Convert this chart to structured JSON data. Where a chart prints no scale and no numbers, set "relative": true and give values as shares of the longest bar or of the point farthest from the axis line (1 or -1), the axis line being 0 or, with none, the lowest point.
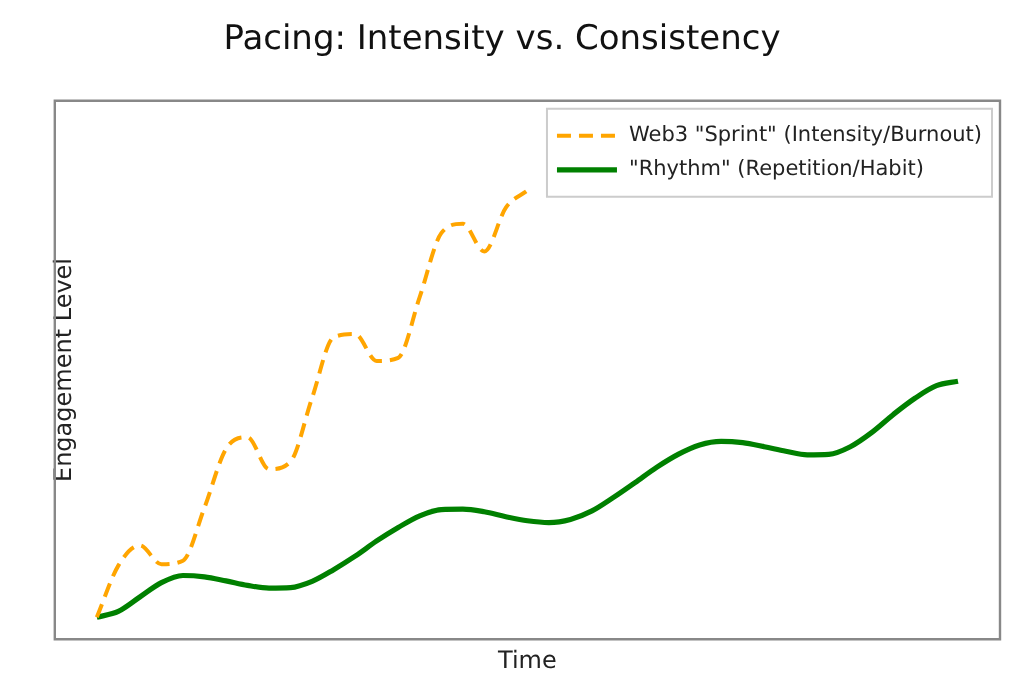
{
  "chart_data": {
    "type": "line",
    "title": "Pacing: Intensity vs. Consistency",
    "xlabel": "Time",
    "ylabel": "Engagement Level",
    "relative": true,
    "legend": "top right",
    "marker": "none",
    "grid": false,
    "categories": [
      null,
      null,
      null,
      null,
      null,
      null,
      null,
      null,
      null,
      null,
      null,
      null,
      null,
      null,
      null,
      null,
      null,
      null,
      null,
      null,
      null,
      null,
      null,
      null,
      null,
      null,
      null,
      null,
      null,
      null,
      null,
      null,
      null,
      null,
      null,
      null,
      null,
      null,
      null,
      null,
      null
    ],
    "series": [
      {
        "name": "Web3 \"Sprint\" (Intensity/Burnout)",
        "color": "#ffa500",
        "line_style": "dashed",
        "values": [
          0.049,
          0.164,
          0.209,
          0.167,
          0.175,
          0.293,
          0.424,
          0.45,
          0.379,
          0.396,
          0.538,
          0.673,
          0.68,
          0.62,
          0.627,
          0.763,
          0.905,
          0.926,
          0.864,
          0.962,
          1.0,
          null,
          null,
          null,
          null,
          null,
          null,
          null,
          null,
          null,
          null,
          null,
          null,
          null,
          null,
          null,
          null,
          null,
          null,
          null,
          null
        ]
      },
      {
        "name": "\"Rhythm\" (Repetition/Habit)",
        "color": "#008000",
        "line_style": "solid",
        "values": [
          0.049,
          0.062,
          0.094,
          0.126,
          0.142,
          0.139,
          0.13,
          0.12,
          0.114,
          0.115,
          0.129,
          0.155,
          0.185,
          0.219,
          0.249,
          0.275,
          0.289,
          0.29,
          0.284,
          0.273,
          0.264,
          0.26,
          0.267,
          0.286,
          0.316,
          0.349,
          0.383,
          0.412,
          0.433,
          0.441,
          0.438,
          0.429,
          0.419,
          0.411,
          0.412,
          0.429,
          0.461,
          0.501,
          0.537,
          0.565,
          0.575
        ]
      }
    ]
  }
}
